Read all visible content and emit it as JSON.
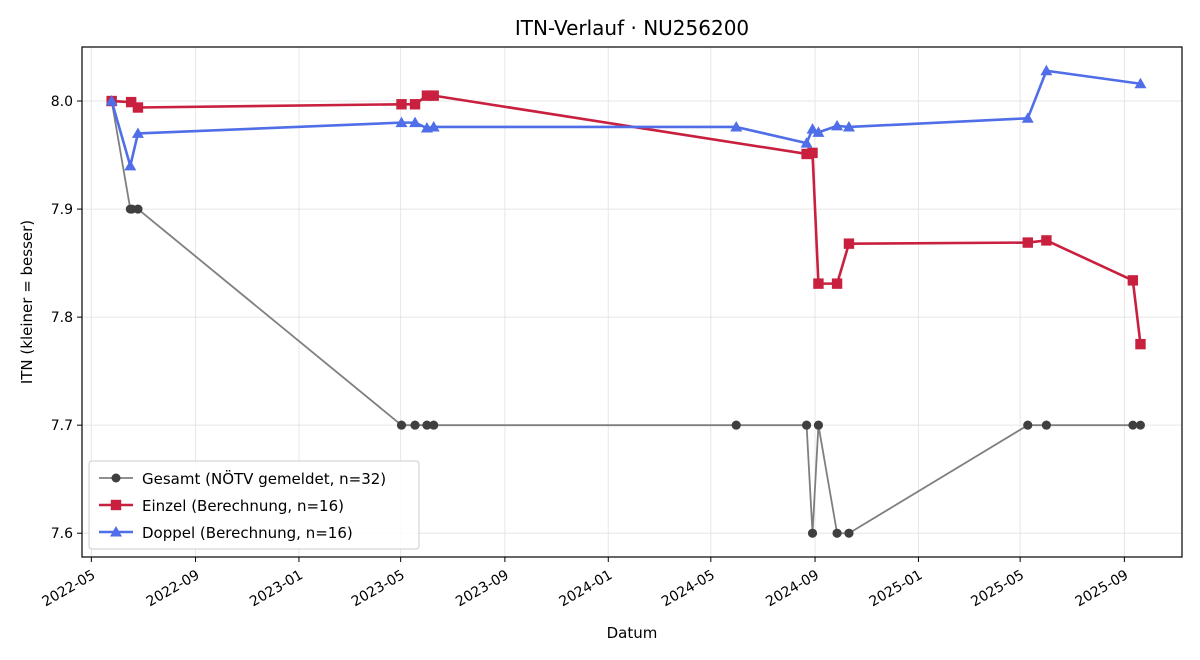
{
  "chart_data": {
    "type": "line",
    "title": "ITN-Verlauf · NU256200",
    "xlabel": "Datum",
    "ylabel": "ITN  (kleiner = besser)",
    "xlim": [
      "2022-04-20",
      "2025-11-08"
    ],
    "ylim": [
      7.578,
      8.05
    ],
    "x_ticks": [
      "2022-05",
      "2022-09",
      "2023-01",
      "2023-05",
      "2023-09",
      "2024-01",
      "2024-05",
      "2024-09",
      "2025-01",
      "2025-05",
      "2025-09"
    ],
    "y_ticks": [
      "7.6",
      "7.7",
      "7.8",
      "7.9",
      "8.0"
    ],
    "grid": true,
    "legend_position": "lower-left",
    "series": [
      {
        "name": "Gesamt (NÖTV gemeldet, n=32)",
        "color": "#7f7f7f",
        "marker_color": "#3f3f3f",
        "marker": "circle",
        "points": [
          [
            "2022-05-25",
            8.0
          ],
          [
            "2022-05-25",
            8.0
          ],
          [
            "2022-06-16",
            7.9
          ],
          [
            "2022-06-18",
            7.9
          ],
          [
            "2022-06-25",
            7.9
          ],
          [
            "2022-06-25",
            7.9
          ],
          [
            "2023-05-02",
            7.7
          ],
          [
            "2023-05-02",
            7.7
          ],
          [
            "2023-05-18",
            7.7
          ],
          [
            "2023-05-18",
            7.7
          ],
          [
            "2023-06-01",
            7.7
          ],
          [
            "2023-06-01",
            7.7
          ],
          [
            "2023-06-09",
            7.7
          ],
          [
            "2023-06-09",
            7.7
          ],
          [
            "2024-05-31",
            7.7
          ],
          [
            "2024-05-31",
            7.7
          ],
          [
            "2024-08-22",
            7.7
          ],
          [
            "2024-08-22",
            7.7
          ],
          [
            "2024-08-29",
            7.6
          ],
          [
            "2024-08-29",
            7.6
          ],
          [
            "2024-09-05",
            7.7
          ],
          [
            "2024-09-05",
            7.7
          ],
          [
            "2024-09-27",
            7.6
          ],
          [
            "2024-09-27",
            7.6
          ],
          [
            "2024-10-11",
            7.6
          ],
          [
            "2024-10-11",
            7.6
          ],
          [
            "2025-05-10",
            7.7
          ],
          [
            "2025-05-10",
            7.7
          ],
          [
            "2025-06-01",
            7.7
          ],
          [
            "2025-06-01",
            7.7
          ],
          [
            "2025-09-11",
            7.7
          ],
          [
            "2025-09-20",
            7.7
          ]
        ]
      },
      {
        "name": "Einzel (Berechnung, n=16)",
        "color": "#c8203e",
        "marker": "square",
        "points": [
          [
            "2022-05-25",
            8.0
          ],
          [
            "2022-06-17",
            7.999
          ],
          [
            "2022-06-25",
            7.994
          ],
          [
            "2023-05-02",
            7.997
          ],
          [
            "2023-05-18",
            7.997
          ],
          [
            "2023-06-01",
            8.005
          ],
          [
            "2023-06-09",
            8.005
          ],
          [
            "2024-08-22",
            7.951
          ],
          [
            "2024-08-29",
            7.952
          ],
          [
            "2024-09-05",
            7.831
          ],
          [
            "2024-09-27",
            7.831
          ],
          [
            "2024-10-11",
            7.868
          ],
          [
            "2025-05-10",
            7.869
          ],
          [
            "2025-06-01",
            7.871
          ],
          [
            "2025-09-11",
            7.834
          ],
          [
            "2025-09-20",
            7.775
          ]
        ]
      },
      {
        "name": "Doppel (Berechnung, n=16)",
        "color": "#4f6ee8",
        "marker": "triangle",
        "points": [
          [
            "2022-05-25",
            8.0
          ],
          [
            "2022-06-16",
            7.94
          ],
          [
            "2022-06-25",
            7.97
          ],
          [
            "2023-05-02",
            7.98
          ],
          [
            "2023-05-18",
            7.98
          ],
          [
            "2023-06-01",
            7.975
          ],
          [
            "2023-06-09",
            7.976
          ],
          [
            "2024-05-31",
            7.976
          ],
          [
            "2024-08-22",
            7.961
          ],
          [
            "2024-08-29",
            7.974
          ],
          [
            "2024-09-05",
            7.971
          ],
          [
            "2024-09-27",
            7.977
          ],
          [
            "2024-10-11",
            7.976
          ],
          [
            "2025-05-10",
            7.984
          ],
          [
            "2025-06-01",
            8.028
          ],
          [
            "2025-09-20",
            8.016
          ]
        ]
      }
    ]
  }
}
